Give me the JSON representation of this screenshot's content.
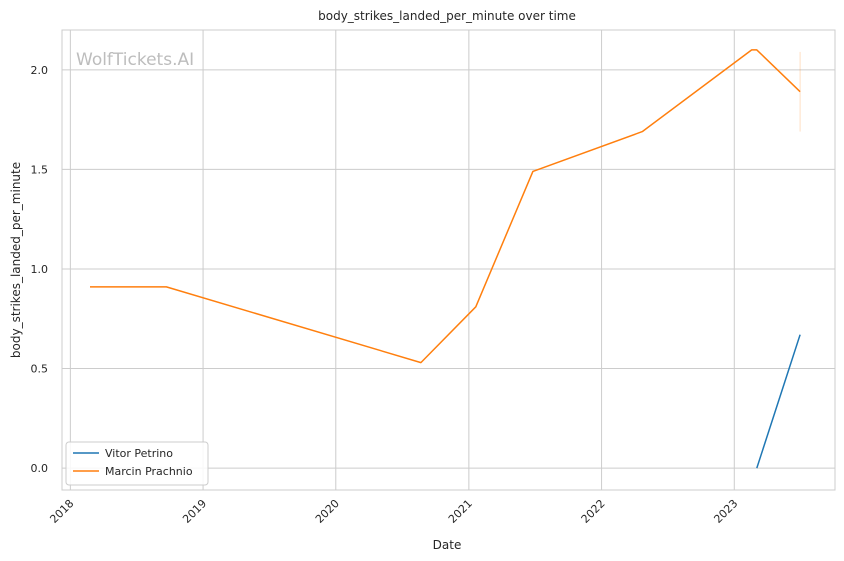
{
  "chart_data": {
    "type": "line",
    "title": "body_strikes_landed_per_minute over time",
    "xlabel": "Date",
    "ylabel": "body_strikes_landed_per_minute",
    "watermark": "WolfTickets.AI",
    "x_tick_labels": [
      "2018",
      "2019",
      "2020",
      "2021",
      "2022",
      "2023"
    ],
    "y_tick_labels": [
      "0.0",
      "0.5",
      "1.0",
      "1.5",
      "2.0"
    ],
    "xlim": [
      "2017-12-09",
      "2023-10-05"
    ],
    "ylim": [
      -0.11,
      2.2
    ],
    "grid": true,
    "legend_position": "lower-left",
    "series": [
      {
        "name": "Vitor Petrino",
        "color": "#1f77b4",
        "points": [
          {
            "date": "2023-03-04",
            "value": 0.0
          },
          {
            "date": "2023-07-01",
            "value": 0.67
          }
        ]
      },
      {
        "name": "Marcin Prachnio",
        "color": "#ff7f0e",
        "points": [
          {
            "date": "2018-02-24",
            "value": 0.91
          },
          {
            "date": "2018-09-22",
            "value": 0.91
          },
          {
            "date": "2020-08-22",
            "value": 0.53
          },
          {
            "date": "2021-01-20",
            "value": 0.81
          },
          {
            "date": "2021-06-26",
            "value": 1.49
          },
          {
            "date": "2022-04-23",
            "value": 1.69
          },
          {
            "date": "2023-02-18",
            "value": 2.1
          },
          {
            "date": "2023-03-04",
            "value": 2.1
          },
          {
            "date": "2023-07-01",
            "value": 1.89
          }
        ],
        "error_bar": {
          "date": "2023-07-01",
          "low": 1.69,
          "high": 2.09
        }
      }
    ]
  }
}
